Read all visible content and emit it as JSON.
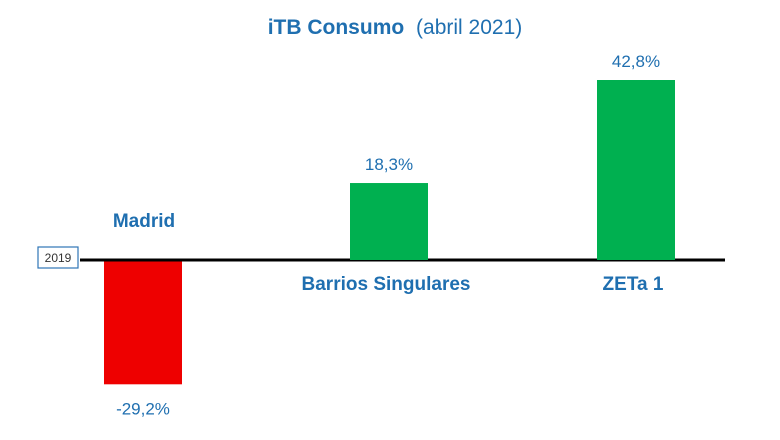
{
  "chart_data": {
    "type": "bar",
    "title_bold": "iTB Consumo",
    "title_normal": "(abril 2021)",
    "baseline_label": "2019",
    "categories": [
      "Madrid",
      "Barrios Singulares",
      "ZETa 1"
    ],
    "values": [
      -29.2,
      18.3,
      42.8
    ],
    "value_labels": [
      "-29,2%",
      "18,3%",
      "42,8%"
    ],
    "bar_colors": [
      "#ee0000",
      "#00b050",
      "#00b050"
    ],
    "text_color": "#1f6fb0",
    "ylim": [
      -29.2,
      42.8
    ],
    "grid": false,
    "legend": "none"
  }
}
